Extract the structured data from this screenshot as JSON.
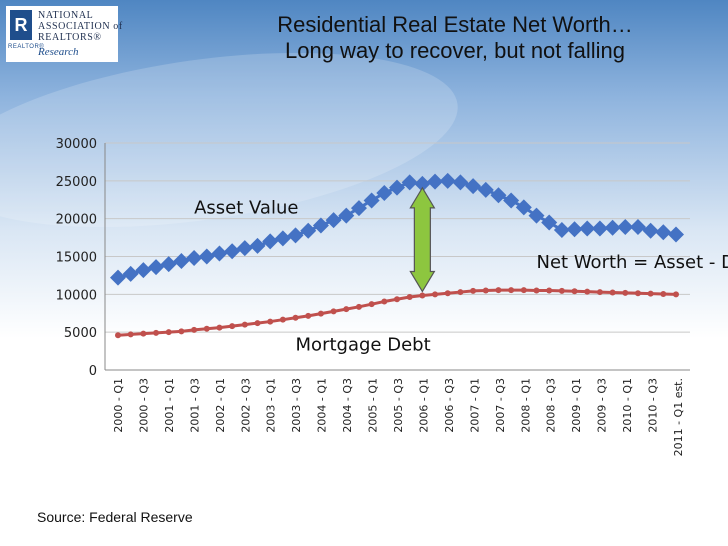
{
  "logo": {
    "name_lines": [
      "NATIONAL",
      "ASSOCIATION of",
      "REALTORS®"
    ],
    "research": "Research",
    "tag": "REALTOR®"
  },
  "title": {
    "line1": "Residential Real Estate Net Worth…",
    "line2": "Long way to recover, but not falling"
  },
  "source": "Source: Federal Reserve",
  "colors": {
    "asset": "#4472c4",
    "debt": "#c0504d",
    "arrow": "#8dc63f",
    "grid": "#c8c8c8"
  },
  "chart_data": {
    "type": "line",
    "title": "",
    "xlabel": "",
    "ylabel": "",
    "ylim": [
      0,
      30000
    ],
    "yticks": [
      0,
      5000,
      10000,
      15000,
      20000,
      25000,
      30000
    ],
    "grid": true,
    "x_tick_labels": [
      "2000 - Q1",
      "2000 - Q3",
      "2001 - Q1",
      "2001 - Q3",
      "2002 - Q1",
      "2002 - Q3",
      "2003 - Q1",
      "2003 - Q3",
      "2004 - Q1",
      "2004 - Q3",
      "2005 - Q1",
      "2005 - Q3",
      "2006 - Q1",
      "2006 - Q3",
      "2007 - Q1",
      "2007 - Q3",
      "2008 - Q1",
      "2008 - Q3",
      "2009 - Q1",
      "2009 - Q3",
      "2010 - Q1",
      "2010 - Q3",
      "2011 - Q1 est."
    ],
    "series": [
      {
        "name": "Asset Value",
        "marker": "diamond",
        "values": [
          12200,
          12700,
          13200,
          13600,
          14000,
          14400,
          14800,
          15000,
          15400,
          15700,
          16100,
          16400,
          17000,
          17400,
          17800,
          18400,
          19100,
          19800,
          20400,
          21400,
          22400,
          23400,
          24100,
          24800,
          24600,
          24900,
          25000,
          24800,
          24300,
          23800,
          23100,
          22400,
          21500,
          20400,
          19500,
          18500,
          18600,
          18700,
          18700,
          18800,
          18900,
          18900,
          18400,
          18200,
          17900
        ]
      },
      {
        "name": "Mortgage Debt",
        "marker": "circle",
        "values": [
          4600,
          4700,
          4800,
          4900,
          5000,
          5100,
          5300,
          5450,
          5600,
          5800,
          6000,
          6200,
          6400,
          6650,
          6900,
          7150,
          7450,
          7750,
          8050,
          8350,
          8700,
          9050,
          9350,
          9650,
          9850,
          10000,
          10150,
          10300,
          10450,
          10500,
          10550,
          10550,
          10550,
          10500,
          10500,
          10450,
          10400,
          10350,
          10300,
          10250,
          10200,
          10150,
          10100,
          10050,
          10000
        ]
      }
    ],
    "annotations": [
      {
        "text": "Asset Value",
        "x_index": 6,
        "y": 20700
      },
      {
        "text": "Mortgage Debt",
        "x_index": 14,
        "y": 2600
      },
      {
        "text": "Net Worth = Asset - Debt",
        "x_index": 33,
        "y": 13500
      }
    ],
    "arrow": {
      "x_index": 24,
      "from": 9850,
      "to": 24600
    }
  }
}
